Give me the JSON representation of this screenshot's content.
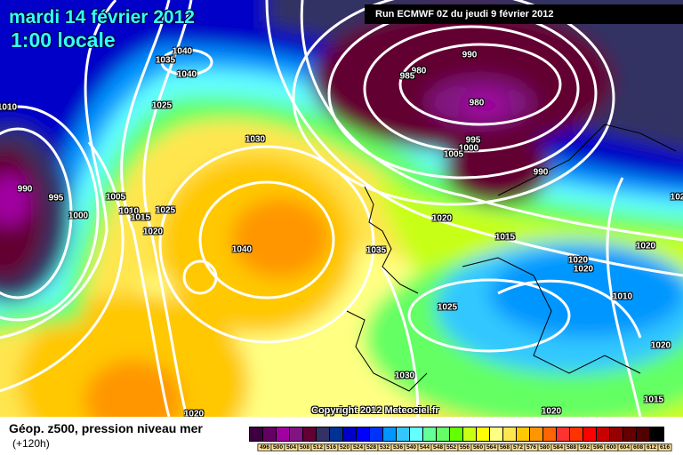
{
  "header": {
    "date": "mardi 14 février 2012",
    "time": "1:00 locale",
    "run": "Run ECMWF 0Z du jeudi 9 février 2012"
  },
  "map": {
    "copyright": "Copyright 2012 Meteociel.fr",
    "isobar_labels": [
      "1040",
      "1035",
      "1040",
      "1025",
      "1030",
      "1010",
      "990",
      "995",
      "1000",
      "1005",
      "1010",
      "1015",
      "1025",
      "1020",
      "1040",
      "1035",
      "990",
      "980",
      "985",
      "980",
      "995",
      "1000",
      "1005",
      "990",
      "1020",
      "1015",
      "1020",
      "1020",
      "1020",
      "102",
      "1010",
      "1025",
      "1020",
      "1030",
      "1015",
      "1020",
      "1020"
    ]
  },
  "legend": {
    "title": "Géop. z500, pression niveau mer",
    "subtitle": "(+120h)",
    "values": [
      "496",
      "500",
      "504",
      "508",
      "512",
      "516",
      "520",
      "524",
      "528",
      "532",
      "536",
      "540",
      "544",
      "548",
      "552",
      "556",
      "560",
      "564",
      "568",
      "572",
      "576",
      "580",
      "584",
      "588",
      "592",
      "596",
      "600",
      "604",
      "608",
      "612",
      "616"
    ],
    "colors": [
      "#3c0040",
      "#640064",
      "#a000a0",
      "#821482",
      "#640032",
      "#323264",
      "#003296",
      "#0000c8",
      "#0000ff",
      "#0032ff",
      "#0096ff",
      "#32c8ff",
      "#64ffff",
      "#64ff96",
      "#64ff64",
      "#64ff00",
      "#c8ff14",
      "#ffff00",
      "#ffff82",
      "#ffe650",
      "#ffc800",
      "#ff9600",
      "#ff6400",
      "#ff3232",
      "#ff3200",
      "#ff0000",
      "#c80000",
      "#960000",
      "#640000",
      "#500000",
      "#000000"
    ]
  }
}
